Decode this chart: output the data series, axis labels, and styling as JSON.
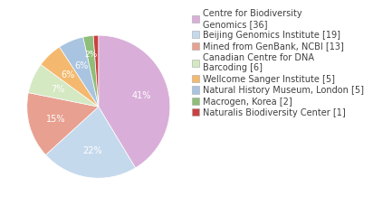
{
  "labels": [
    "Centre for Biodiversity\nGenomics [36]",
    "Beijing Genomics Institute [19]",
    "Mined from GenBank, NCBI [13]",
    "Canadian Centre for DNA\nBarcoding [6]",
    "Wellcome Sanger Institute [5]",
    "Natural History Museum, London [5]",
    "Macrogen, Korea [2]",
    "Naturalis Biodiversity Center [1]"
  ],
  "legend_labels": [
    "Centre for Biodiversity\nGenomics [36]",
    "Beijing Genomics Institute [19]",
    "Mined from GenBank, NCBI [13]",
    "Canadian Centre for DNA\nBarcoding [6]",
    "Wellcome Sanger Institute [5]",
    "Natural History Museum, London [5]",
    "Macrogen, Korea [2]",
    "Naturalis Biodiversity Center [1]"
  ],
  "values": [
    36,
    19,
    13,
    6,
    5,
    5,
    2,
    1
  ],
  "colors": [
    "#d9afd9",
    "#c5d9ed",
    "#e8a090",
    "#d4e8c2",
    "#f4b96e",
    "#a8c4e0",
    "#8fbd7a",
    "#c94040"
  ],
  "background_color": "#ffffff",
  "text_color": "#404040",
  "pct_color": "#ffffff",
  "font_size": 7.0
}
